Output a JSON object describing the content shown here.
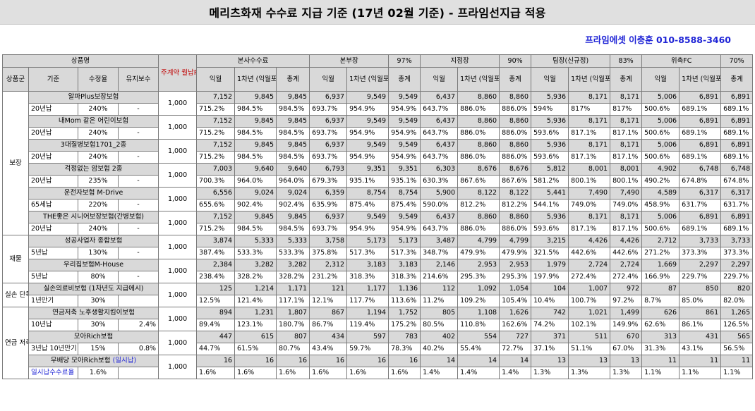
{
  "title": "메리츠화재 수수료 지급 기준 (17년 02월 기준) - 프라임선지급 적용",
  "contact": "프라임에셋 이충훈 010-8588-3460",
  "header": {
    "product_name": "상품명",
    "main_premium": "주계약 월납P",
    "groups": [
      {
        "name": "본사수수료",
        "pct": ""
      },
      {
        "name": "본부장",
        "pct": "97%"
      },
      {
        "name": "지점장",
        "pct": "90%"
      },
      {
        "name": "팀장(신규정)",
        "pct": "83%"
      },
      {
        "name": "위촉FC",
        "pct": "70%"
      }
    ],
    "sub": {
      "category": "상품군",
      "basis": "기준",
      "collection_rate": "수정율",
      "maintenance": "유지보수"
    },
    "cols": {
      "first": "익월",
      "year1": "1차년 (익월포함)",
      "total": "총계"
    }
  },
  "sections": [
    {
      "category": "보장",
      "products": [
        {
          "name": "알파Plus보장보험",
          "basis": "20년납",
          "rate": "240%",
          "maint": "-",
          "premium": "1,000",
          "amounts": [
            "7,152",
            "9,845",
            "9,845",
            "6,937",
            "9,549",
            "9,549",
            "6,437",
            "8,860",
            "8,860",
            "5,936",
            "8,171",
            "8,171",
            "5,006",
            "6,891",
            "6,891"
          ],
          "percents": [
            "715.2%",
            "984.5%",
            "984.5%",
            "693.7%",
            "954.9%",
            "954.9%",
            "643.7%",
            "886.0%",
            "886.0%",
            "594%",
            "817%",
            "817%",
            "500.6%",
            "689.1%",
            "689.1%"
          ]
        },
        {
          "name": "내Mom 같은 어린이보험",
          "basis": "20년납",
          "rate": "240%",
          "maint": "-",
          "premium": "1,000",
          "amounts": [
            "7,152",
            "9,845",
            "9,845",
            "6,937",
            "9,549",
            "9,549",
            "6,437",
            "8,860",
            "8,860",
            "5,936",
            "8,171",
            "8,171",
            "5,006",
            "6,891",
            "6,891"
          ],
          "percents": [
            "715.2%",
            "984.5%",
            "984.5%",
            "693.7%",
            "954.9%",
            "954.9%",
            "643.7%",
            "886.0%",
            "886.0%",
            "593.6%",
            "817.1%",
            "817.1%",
            "500.6%",
            "689.1%",
            "689.1%"
          ]
        },
        {
          "name": "3대질병보험1701_2종",
          "basis": "20년납",
          "rate": "240%",
          "maint": "-",
          "premium": "1,000",
          "amounts": [
            "7,152",
            "9,845",
            "9,845",
            "6,937",
            "9,549",
            "9,549",
            "6,437",
            "8,860",
            "8,860",
            "5,936",
            "8,171",
            "8,171",
            "5,006",
            "6,891",
            "6,891"
          ],
          "percents": [
            "715.2%",
            "984.5%",
            "984.5%",
            "693.7%",
            "954.9%",
            "954.9%",
            "643.7%",
            "886.0%",
            "886.0%",
            "593.6%",
            "817.1%",
            "817.1%",
            "500.6%",
            "689.1%",
            "689.1%"
          ]
        },
        {
          "name": "걱정없는 암보험 2종",
          "basis": "20년납",
          "rate": "235%",
          "maint": "-",
          "premium": "1,000",
          "amounts": [
            "7,003",
            "9,640",
            "9,640",
            "6,793",
            "9,351",
            "9,351",
            "6,303",
            "8,676",
            "8,676",
            "5,812",
            "8,001",
            "8,001",
            "4,902",
            "6,748",
            "6,748"
          ],
          "percents": [
            "700.3%",
            "964.0%",
            "964.0%",
            "679.3%",
            "935.1%",
            "935.1%",
            "630.3%",
            "867.6%",
            "867.6%",
            "581.2%",
            "800.1%",
            "800.1%",
            "490.2%",
            "674.8%",
            "674.8%"
          ]
        },
        {
          "name": "운전자보험 M-Drive",
          "basis": "65세납",
          "rate": "220%",
          "maint": "-",
          "premium": "1,000",
          "amounts": [
            "6,556",
            "9,024",
            "9,024",
            "6,359",
            "8,754",
            "8,754",
            "5,900",
            "8,122",
            "8,122",
            "5,441",
            "7,490",
            "7,490",
            "4,589",
            "6,317",
            "6,317"
          ],
          "percents": [
            "655.6%",
            "902.4%",
            "902.4%",
            "635.9%",
            "875.4%",
            "875.4%",
            "590.0%",
            "812.2%",
            "812.2%",
            "544.1%",
            "749.0%",
            "749.0%",
            "458.9%",
            "631.7%",
            "631.7%"
          ]
        },
        {
          "name": "THE좋은 시니어보장보험(간병보험)",
          "basis": "20년납",
          "rate": "240%",
          "maint": "-",
          "premium": "1,000",
          "amounts": [
            "7,152",
            "9,845",
            "9,845",
            "6,937",
            "9,549",
            "9,549",
            "6,437",
            "8,860",
            "8,860",
            "5,936",
            "8,171",
            "8,171",
            "5,006",
            "6,891",
            "6,891"
          ],
          "percents": [
            "715.2%",
            "984.5%",
            "984.5%",
            "693.7%",
            "954.9%",
            "954.9%",
            "643.7%",
            "886.0%",
            "886.0%",
            "593.6%",
            "817.1%",
            "817.1%",
            "500.6%",
            "689.1%",
            "689.1%"
          ]
        }
      ]
    },
    {
      "category": "재물",
      "products": [
        {
          "name": "성공사업자 종합보험",
          "basis": "5년납",
          "rate": "130%",
          "maint": "-",
          "premium": "1,000",
          "amounts": [
            "3,874",
            "5,333",
            "5,333",
            "3,758",
            "5,173",
            "5,173",
            "3,487",
            "4,799",
            "4,799",
            "3,215",
            "4,426",
            "4,426",
            "2,712",
            "3,733",
            "3,733"
          ],
          "percents": [
            "387.4%",
            "533.3%",
            "533.3%",
            "375.8%",
            "517.3%",
            "517.3%",
            "348.7%",
            "479.9%",
            "479.9%",
            "321.5%",
            "442.6%",
            "442.6%",
            "271.2%",
            "373.3%",
            "373.3%"
          ]
        },
        {
          "name": "우리집보험M-House",
          "basis": "5년납",
          "rate": "80%",
          "maint": "-",
          "premium": "1,000",
          "amounts": [
            "2,384",
            "3,282",
            "3,282",
            "2,312",
            "3,183",
            "3,183",
            "2,146",
            "2,953",
            "2,953",
            "1,979",
            "2,724",
            "2,724",
            "1,669",
            "2,297",
            "2,297"
          ],
          "percents": [
            "238.4%",
            "328.2%",
            "328.2%",
            "231.2%",
            "318.3%",
            "318.3%",
            "214.6%",
            "295.3%",
            "295.3%",
            "197.9%",
            "272.4%",
            "272.4%",
            "166.9%",
            "229.7%",
            "229.7%"
          ]
        }
      ]
    },
    {
      "category": "실손 단독",
      "products": [
        {
          "name": "실손의료비보험 (1차년도 지급에시)",
          "basis": "1년만기",
          "rate": "30%",
          "maint": "",
          "premium": "1,000",
          "amounts": [
            "125",
            "1,214",
            "1,171",
            "121",
            "1,177",
            "1,136",
            "112",
            "1,092",
            "1,054",
            "104",
            "1,007",
            "972",
            "87",
            "850",
            "820"
          ],
          "percents": [
            "12.5%",
            "121.4%",
            "117.1%",
            "12.1%",
            "117.7%",
            "113.6%",
            "11.2%",
            "109.2%",
            "105.4%",
            "10.4%",
            "100.7%",
            "97.2%",
            "8.7%",
            "85.0%",
            "82.0%"
          ]
        }
      ]
    },
    {
      "category": "연금 저축",
      "products": [
        {
          "name": "연금저축 노후생활지킴이보험",
          "basis": "10년납",
          "rate": "30%",
          "maint": "2.4%",
          "premium": "1,000",
          "amounts": [
            "894",
            "1,231",
            "1,807",
            "867",
            "1,194",
            "1,752",
            "805",
            "1,108",
            "1,626",
            "742",
            "1,021",
            "1,499",
            "626",
            "861",
            "1,265"
          ],
          "percents": [
            "89.4%",
            "123.1%",
            "180.7%",
            "86.7%",
            "119.4%",
            "175.2%",
            "80.5%",
            "110.8%",
            "162.6%",
            "74.2%",
            "102.1%",
            "149.9%",
            "62.6%",
            "86.1%",
            "126.5%"
          ]
        },
        {
          "name": "모아Rich보험",
          "basis": "3년납 10년만기",
          "rate": "15%",
          "maint": "0.8%",
          "premium": "1,000",
          "amounts": [
            "447",
            "615",
            "807",
            "434",
            "597",
            "783",
            "402",
            "554",
            "727",
            "371",
            "511",
            "670",
            "313",
            "431",
            "565"
          ],
          "percents": [
            "44.7%",
            "61.5%",
            "80.7%",
            "43.4%",
            "59.7%",
            "78.3%",
            "40.2%",
            "55.4%",
            "72.7%",
            "37.1%",
            "51.1%",
            "67.0%",
            "31.3%",
            "43.1%",
            "56.5%"
          ]
        },
        {
          "name": "무배당 모아Rich보험 ",
          "name_note": "(일시납)",
          "basis": "일시납수수료율",
          "basis_blue": true,
          "rate": "1.6%",
          "maint": "",
          "premium": "1,000",
          "amounts": [
            "16",
            "16",
            "16",
            "16",
            "16",
            "16",
            "14",
            "14",
            "14",
            "13",
            "13",
            "13",
            "11",
            "11",
            "11"
          ],
          "percents": [
            "1.6%",
            "1.6%",
            "1.6%",
            "1.6%",
            "1.6%",
            "1.6%",
            "1.4%",
            "1.4%",
            "1.4%",
            "1.3%",
            "1.3%",
            "1.3%",
            "1.1%",
            "1.1%",
            "1.1%"
          ]
        }
      ]
    }
  ]
}
